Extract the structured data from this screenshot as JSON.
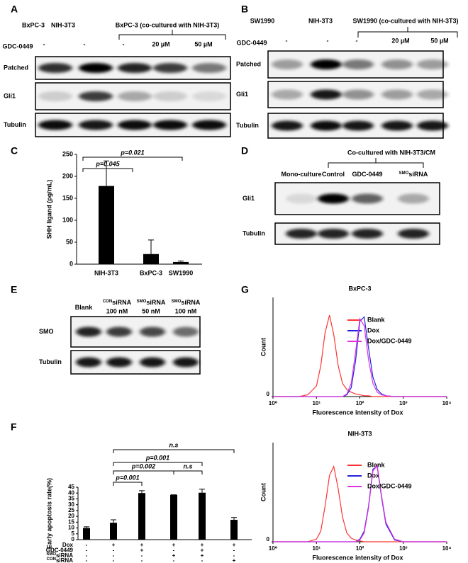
{
  "letters": [
    "A",
    "B",
    "C",
    "D",
    "E",
    "F",
    "G"
  ],
  "blot_a": {
    "headers": [
      "BxPC-3",
      "NIH-3T3",
      "BxPC-3 (co-cultured with NIH-3T3)"
    ],
    "treatment": "GDC-0449",
    "doses": [
      "-",
      "-",
      "-",
      "20 µM",
      "50 µM"
    ],
    "rows": [
      "Patched",
      "Gli1",
      "Tubulin"
    ]
  },
  "blot_b": {
    "headers": [
      "SW1990",
      "NIH-3T3",
      "SW1990 (co-cultured with NIH-3T3)"
    ],
    "treatment": "GDC-0449",
    "doses": [
      "-",
      "-",
      "-",
      "20 µM",
      "50 µM"
    ],
    "rows": [
      "Patched",
      "Gli1",
      "Tubulin"
    ]
  },
  "blot_d": {
    "bracket": "Co-cultured with NIH-3T3/CM",
    "lanes": [
      {
        "name": "Mono-culture"
      },
      {
        "name": "Control"
      },
      {
        "name": "GDC-0449"
      },
      {
        "sup": "SMO",
        "name": "siRNA"
      }
    ],
    "rows": [
      "Gli1",
      "Tubulin"
    ]
  },
  "blot_e": {
    "lanes": [
      {
        "name": "Blank"
      },
      {
        "sup": "CON",
        "name": "siRNA",
        "dose": "100 nM"
      },
      {
        "sup": "SMO",
        "name": "siRNA",
        "dose": "50 nM"
      },
      {
        "sup": "SMO",
        "name": "siRNA",
        "dose": "100 nM"
      }
    ],
    "rows": [
      "SMO",
      "Tubulin"
    ]
  },
  "chart_data": [
    {
      "type": "bar",
      "ylabel": "SHH ligand (pg/mL)",
      "categories": [
        "NIH-3T3",
        "BxPC-3",
        "SW1990"
      ],
      "values": [
        178,
        23,
        5
      ],
      "errors": [
        57,
        32,
        2
      ],
      "color": "#000000",
      "ylim": [
        0,
        250
      ],
      "yticks": [
        0,
        50,
        100,
        150,
        200,
        250
      ],
      "annotations": [
        "p=0.045",
        "p=0.021"
      ]
    },
    {
      "type": "bar",
      "ylabel": "Early apoptosis rate(%)",
      "categories": [
        null,
        null,
        null,
        null,
        null,
        null
      ],
      "values": [
        10,
        14.5,
        40,
        38.5,
        40.3,
        17
      ],
      "errors": [
        1,
        2.5,
        2,
        0,
        3,
        2
      ],
      "color": "#000000",
      "ylim": [
        0,
        45
      ],
      "yticks": [
        0,
        5,
        10,
        15,
        20,
        25,
        30,
        35,
        40,
        45
      ],
      "annotations": [
        "n.s",
        "p=0.001",
        "p=0.002",
        "n.s",
        "p=0.001"
      ],
      "table": [
        {
          "name": "Dox",
          "signs": [
            "-",
            "+",
            "+",
            "+",
            "+",
            "+"
          ]
        },
        {
          "name": "GDC-0449",
          "signs": [
            "-",
            "-",
            "+",
            "-",
            "+",
            "-"
          ]
        },
        {
          "sup": "SMO",
          "name": "siRNA",
          "signs": [
            "-",
            "-",
            "-",
            "+",
            "+",
            "-"
          ]
        },
        {
          "sup": "CON",
          "name": "siRNA",
          "signs": [
            "-",
            "-",
            "-",
            "-",
            "-",
            "+"
          ]
        }
      ]
    },
    {
      "type": "line",
      "title": "BxPC-3",
      "xlabel": "Fluorescence intensity of Dox",
      "ylabel": "Count",
      "log_x": true,
      "x": [
        1,
        3.98,
        6.31,
        10,
        12.6,
        15.8,
        20,
        25.1,
        31.6,
        39.8,
        50.1,
        63.1,
        79.4,
        100,
        126,
        158,
        200,
        251,
        316,
        398,
        631,
        1000,
        10000
      ],
      "xlim": [
        1,
        10000
      ],
      "xticks": [
        {
          "value": 1,
          "label": "10⁰"
        },
        {
          "value": 10,
          "label": "10¹"
        },
        {
          "value": 100,
          "label": "10²"
        },
        {
          "value": 1000,
          "label": "10³"
        },
        {
          "value": 10000,
          "label": "10⁴"
        }
      ],
      "ylim": [
        0,
        100
      ],
      "yticks": [
        0
      ],
      "series": [
        {
          "name": "Blank",
          "color": "#ff3333",
          "values": [
            0,
            0,
            2,
            12,
            35,
            72,
            92,
            70,
            35,
            15,
            8,
            5,
            3,
            2,
            1,
            1,
            0,
            0,
            0,
            0,
            0,
            0,
            0
          ]
        },
        {
          "name": "Dox",
          "color": "#2222dd",
          "values": [
            0,
            0,
            0,
            0,
            0,
            0,
            0,
            0,
            0,
            0,
            2,
            10,
            40,
            85,
            90,
            55,
            22,
            8,
            3,
            1,
            0,
            0,
            0
          ]
        },
        {
          "name": "Dox/GDC-0449",
          "color": "#dd33dd",
          "values": [
            0,
            0,
            0,
            0,
            0,
            0,
            0,
            0,
            0,
            0,
            3,
            15,
            50,
            88,
            80,
            42,
            15,
            5,
            2,
            1,
            0,
            0,
            0
          ]
        }
      ]
    },
    {
      "type": "line",
      "title": "NIH-3T3",
      "xlabel": "Fluorescence intensity of Dox",
      "ylabel": "Count",
      "log_x": true,
      "x": [
        1,
        3.98,
        6.31,
        10,
        12.6,
        15.8,
        20,
        25.1,
        31.6,
        39.8,
        50.1,
        63.1,
        79.4,
        100,
        126,
        158,
        200,
        251,
        316,
        398,
        631,
        1000,
        10000
      ],
      "xlim": [
        1,
        10000
      ],
      "xticks": [
        {
          "value": 1,
          "label": "10⁰"
        },
        {
          "value": 10,
          "label": "10¹"
        },
        {
          "value": 100,
          "label": "10²"
        },
        {
          "value": 1000,
          "label": "10³"
        },
        {
          "value": 10000,
          "label": "10⁴"
        }
      ],
      "ylim": [
        0,
        100
      ],
      "yticks": [
        0
      ],
      "series": [
        {
          "name": "Blank",
          "color": "#ff3333",
          "values": [
            0,
            0,
            0,
            3,
            12,
            40,
            75,
            85,
            60,
            28,
            10,
            4,
            2,
            1,
            0,
            0,
            0,
            0,
            0,
            0,
            0,
            0,
            0
          ]
        },
        {
          "name": "Dox",
          "color": "#2222dd",
          "values": [
            0,
            0,
            0,
            0,
            0,
            0,
            0,
            0,
            0,
            0,
            0,
            0,
            0,
            3,
            12,
            40,
            82,
            85,
            50,
            20,
            2,
            0,
            0
          ]
        },
        {
          "name": "Dox/GDC-0449",
          "color": "#dd33dd",
          "values": [
            0,
            0,
            0,
            0,
            0,
            0,
            0,
            0,
            0,
            0,
            0,
            0,
            0,
            2,
            10,
            38,
            80,
            86,
            52,
            22,
            3,
            0,
            0
          ]
        }
      ]
    }
  ]
}
